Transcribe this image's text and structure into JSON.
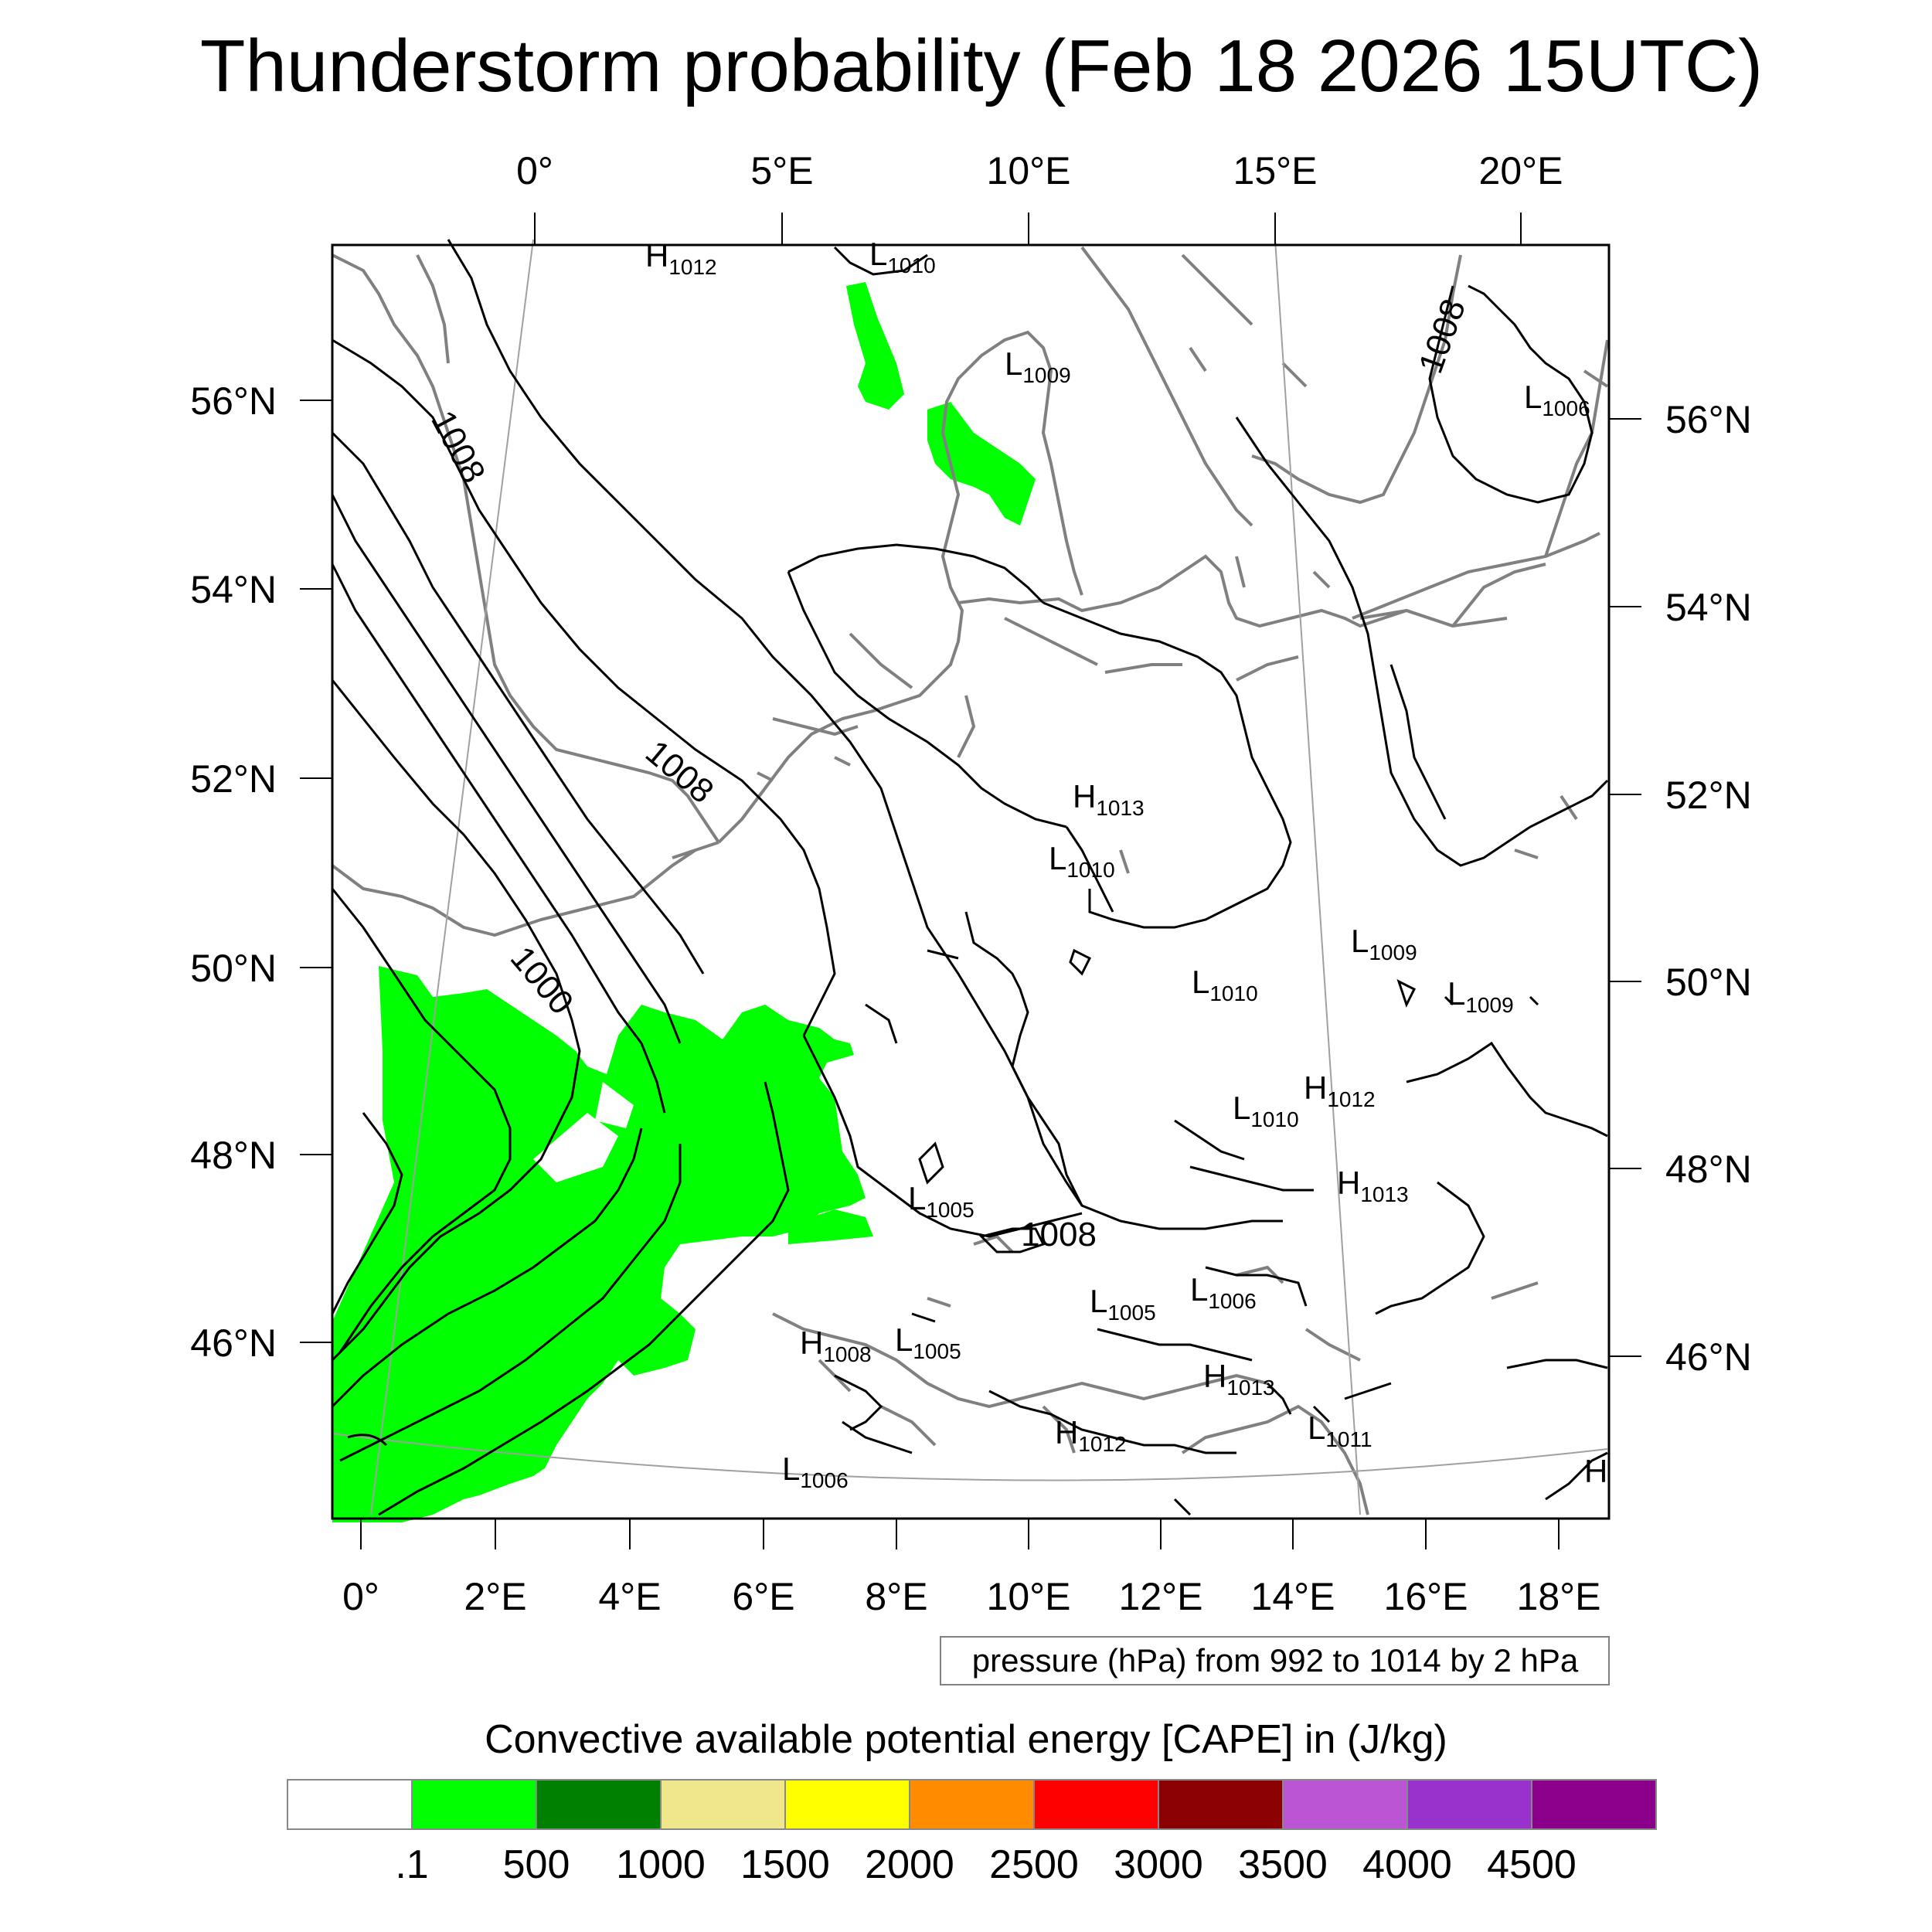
{
  "title": "Thunderstorm probability (Feb 18 2026 15UTC)",
  "top_lon_labels": [
    "0°",
    "5°E",
    "10°E",
    "15°E",
    "20°E"
  ],
  "bottom_lon_labels": [
    "0°",
    "2°E",
    "4°E",
    "6°E",
    "8°E",
    "10°E",
    "12°E",
    "14°E",
    "16°E",
    "18°E"
  ],
  "left_lat_labels": [
    "56°N",
    "54°N",
    "52°N",
    "50°N",
    "48°N",
    "46°N"
  ],
  "right_lat_labels": [
    "56°N",
    "54°N",
    "52°N",
    "50°N",
    "48°N",
    "46°N"
  ],
  "pressure_centers": [
    {
      "type": "H",
      "value": "1012"
    },
    {
      "type": "L",
      "value": "1010"
    },
    {
      "type": "L",
      "value": "1009"
    },
    {
      "type": "L",
      "value": "1006"
    },
    {
      "type": "H",
      "value": "1013"
    },
    {
      "type": "L",
      "value": "1010"
    },
    {
      "type": "L",
      "value": "1009"
    },
    {
      "type": "L",
      "value": "1010"
    },
    {
      "type": "L",
      "value": "1009"
    },
    {
      "type": "H",
      "value": "1012"
    },
    {
      "type": "L",
      "value": "1010"
    },
    {
      "type": "H",
      "value": "1013"
    },
    {
      "type": "L",
      "value": "1005"
    },
    {
      "type": "L",
      "value": "1005"
    },
    {
      "type": "L",
      "value": "1006"
    },
    {
      "type": "H",
      "value": "1008"
    },
    {
      "type": "L",
      "value": "1005"
    },
    {
      "type": "H",
      "value": "1013"
    },
    {
      "type": "H",
      "value": "1012"
    },
    {
      "type": "L",
      "value": "1011"
    },
    {
      "type": "L",
      "value": "1006"
    },
    {
      "type": "H",
      "value": ""
    }
  ],
  "contour_labels": [
    "1008",
    "1008",
    "1008",
    "1000",
    "1008"
  ],
  "pressure_note": "pressure (hPa) from 992 to 1014 by 2 hPa",
  "legend": {
    "title": "Convective available potential energy [CAPE] in (J/kg)",
    "colors": [
      "#ffffff",
      "#00ff00",
      "#008000",
      "#f0e68c",
      "#ffff00",
      "#ff8c00",
      "#ff0000",
      "#8b0000",
      "#ba55d3",
      "#9932cc",
      "#8b008b"
    ],
    "labels": [
      ".1",
      "500",
      "1000",
      "1500",
      "2000",
      "2500",
      "3000",
      "3500",
      "4000",
      "4500"
    ]
  },
  "colors": {
    "cape_fill": "#00ff00",
    "coast": "#808080",
    "isobar": "#000000"
  }
}
